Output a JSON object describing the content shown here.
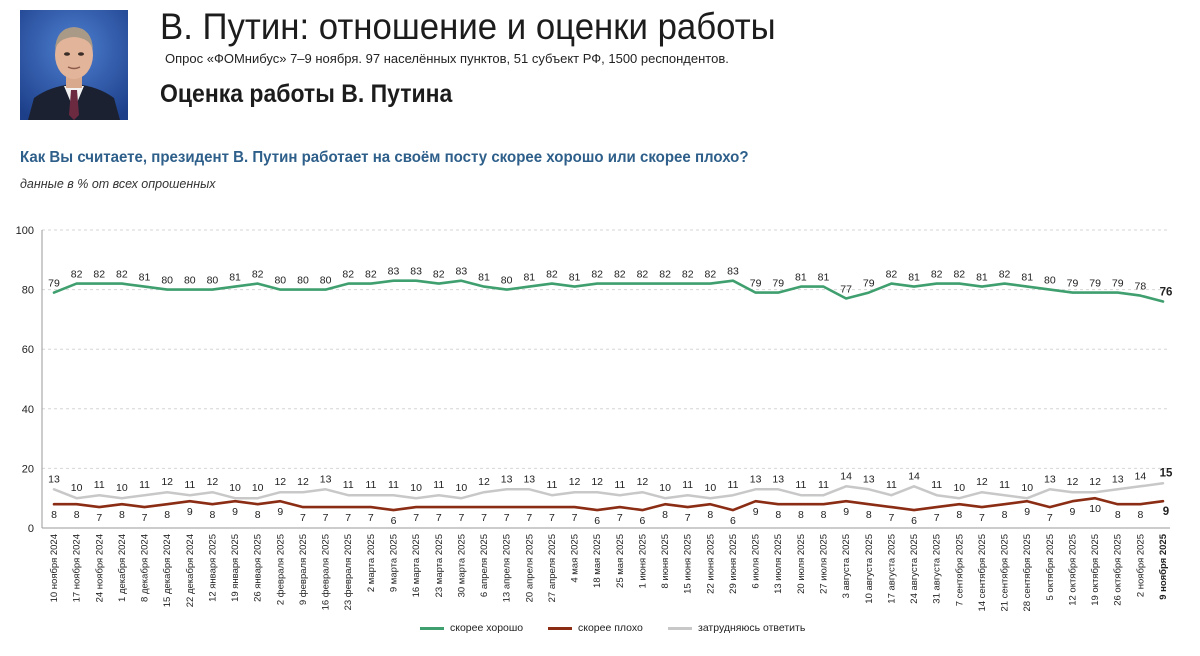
{
  "header": {
    "title": "В. Путин: отношение и оценки работы",
    "subtitle": "Опрос «ФОМнибус» 7–9 ноября. 97 населённых пунктов, 51 субъект РФ, 1500 респондентов.",
    "section_title": "Оценка работы В. Путина"
  },
  "question": {
    "text": "Как Вы считаете, президент В. Путин работает на своём посту скорее хорошо или скорее плохо?",
    "note": "данные в % от всех опрошенных"
  },
  "colors": {
    "good": "#3f9f6e",
    "bad": "#8b2d14",
    "unsure": "#c8c8c8"
  },
  "chart_data": {
    "type": "line",
    "title": "",
    "xlabel": "",
    "ylabel": "",
    "ylim": [
      0,
      100
    ],
    "yticks": [
      0,
      20,
      40,
      60,
      80,
      100
    ],
    "grid": true,
    "legend_position": "bottom",
    "categories": [
      "10 ноября 2024",
      "17 ноября 2024",
      "24 ноября 2024",
      "1 декабря 2024",
      "8 декабря 2024",
      "15 декабря 2024",
      "22 декабря 2024",
      "12 января 2025",
      "19 января 2025",
      "26 января 2025",
      "2 февраля 2025",
      "9 февраля 2025",
      "16 февраля 2025",
      "23 февраля 2025",
      "2 марта 2025",
      "9 марта 2025",
      "16 марта 2025",
      "23 марта 2025",
      "30 марта 2025",
      "6 апреля 2025",
      "13 апреля 2025",
      "20 апреля 2025",
      "27 апреля 2025",
      "4 мая 2025",
      "18 мая 2025",
      "25 мая 2025",
      "1 июня 2025",
      "8 июня 2025",
      "15 июня 2025",
      "22 июня 2025",
      "29 июня 2025",
      "6 июля 2025",
      "13 июля 2025",
      "20 июля 2025",
      "27 июля 2025",
      "3 августа 2025",
      "10 августа 2025",
      "17 августа 2025",
      "24 августа 2025",
      "31 августа 2025",
      "7 сентября 2025",
      "14 сентября 2025",
      "21 сентября 2025",
      "28 сентября 2025",
      "5 октября 2025",
      "12 октября 2025",
      "19 октября 2025",
      "26 октября 2025",
      "2 ноября 2025",
      "9 ноября 2025"
    ],
    "series": [
      {
        "name": "скорее хорошо",
        "color": "#3f9f6e",
        "values": [
          79,
          82,
          82,
          82,
          81,
          80,
          80,
          80,
          81,
          82,
          80,
          80,
          80,
          82,
          82,
          83,
          83,
          82,
          83,
          81,
          80,
          81,
          82,
          81,
          82,
          82,
          82,
          82,
          82,
          82,
          83,
          79,
          79,
          81,
          81,
          77,
          79,
          82,
          81,
          82,
          82,
          81,
          82,
          81,
          80,
          79,
          79,
          79,
          78,
          76
        ]
      },
      {
        "name": "скорее плохо",
        "color": "#8b2d14",
        "values": [
          8,
          8,
          7,
          8,
          7,
          8,
          9,
          8,
          9,
          8,
          9,
          7,
          7,
          7,
          7,
          6,
          7,
          7,
          7,
          7,
          7,
          7,
          7,
          7,
          6,
          7,
          6,
          8,
          7,
          8,
          6,
          9,
          8,
          8,
          8,
          9,
          8,
          7,
          6,
          7,
          8,
          7,
          8,
          9,
          7,
          9,
          10,
          8,
          8,
          9
        ]
      },
      {
        "name": "затрудняюсь ответить",
        "color": "#c8c8c8",
        "values": [
          13,
          10,
          11,
          10,
          11,
          12,
          11,
          12,
          10,
          10,
          12,
          12,
          13,
          11,
          11,
          11,
          10,
          11,
          10,
          12,
          13,
          13,
          11,
          12,
          12,
          11,
          12,
          10,
          11,
          10,
          11,
          13,
          13,
          11,
          11,
          14,
          13,
          11,
          14,
          11,
          10,
          12,
          11,
          10,
          13,
          12,
          12,
          13,
          14,
          15
        ]
      }
    ]
  }
}
